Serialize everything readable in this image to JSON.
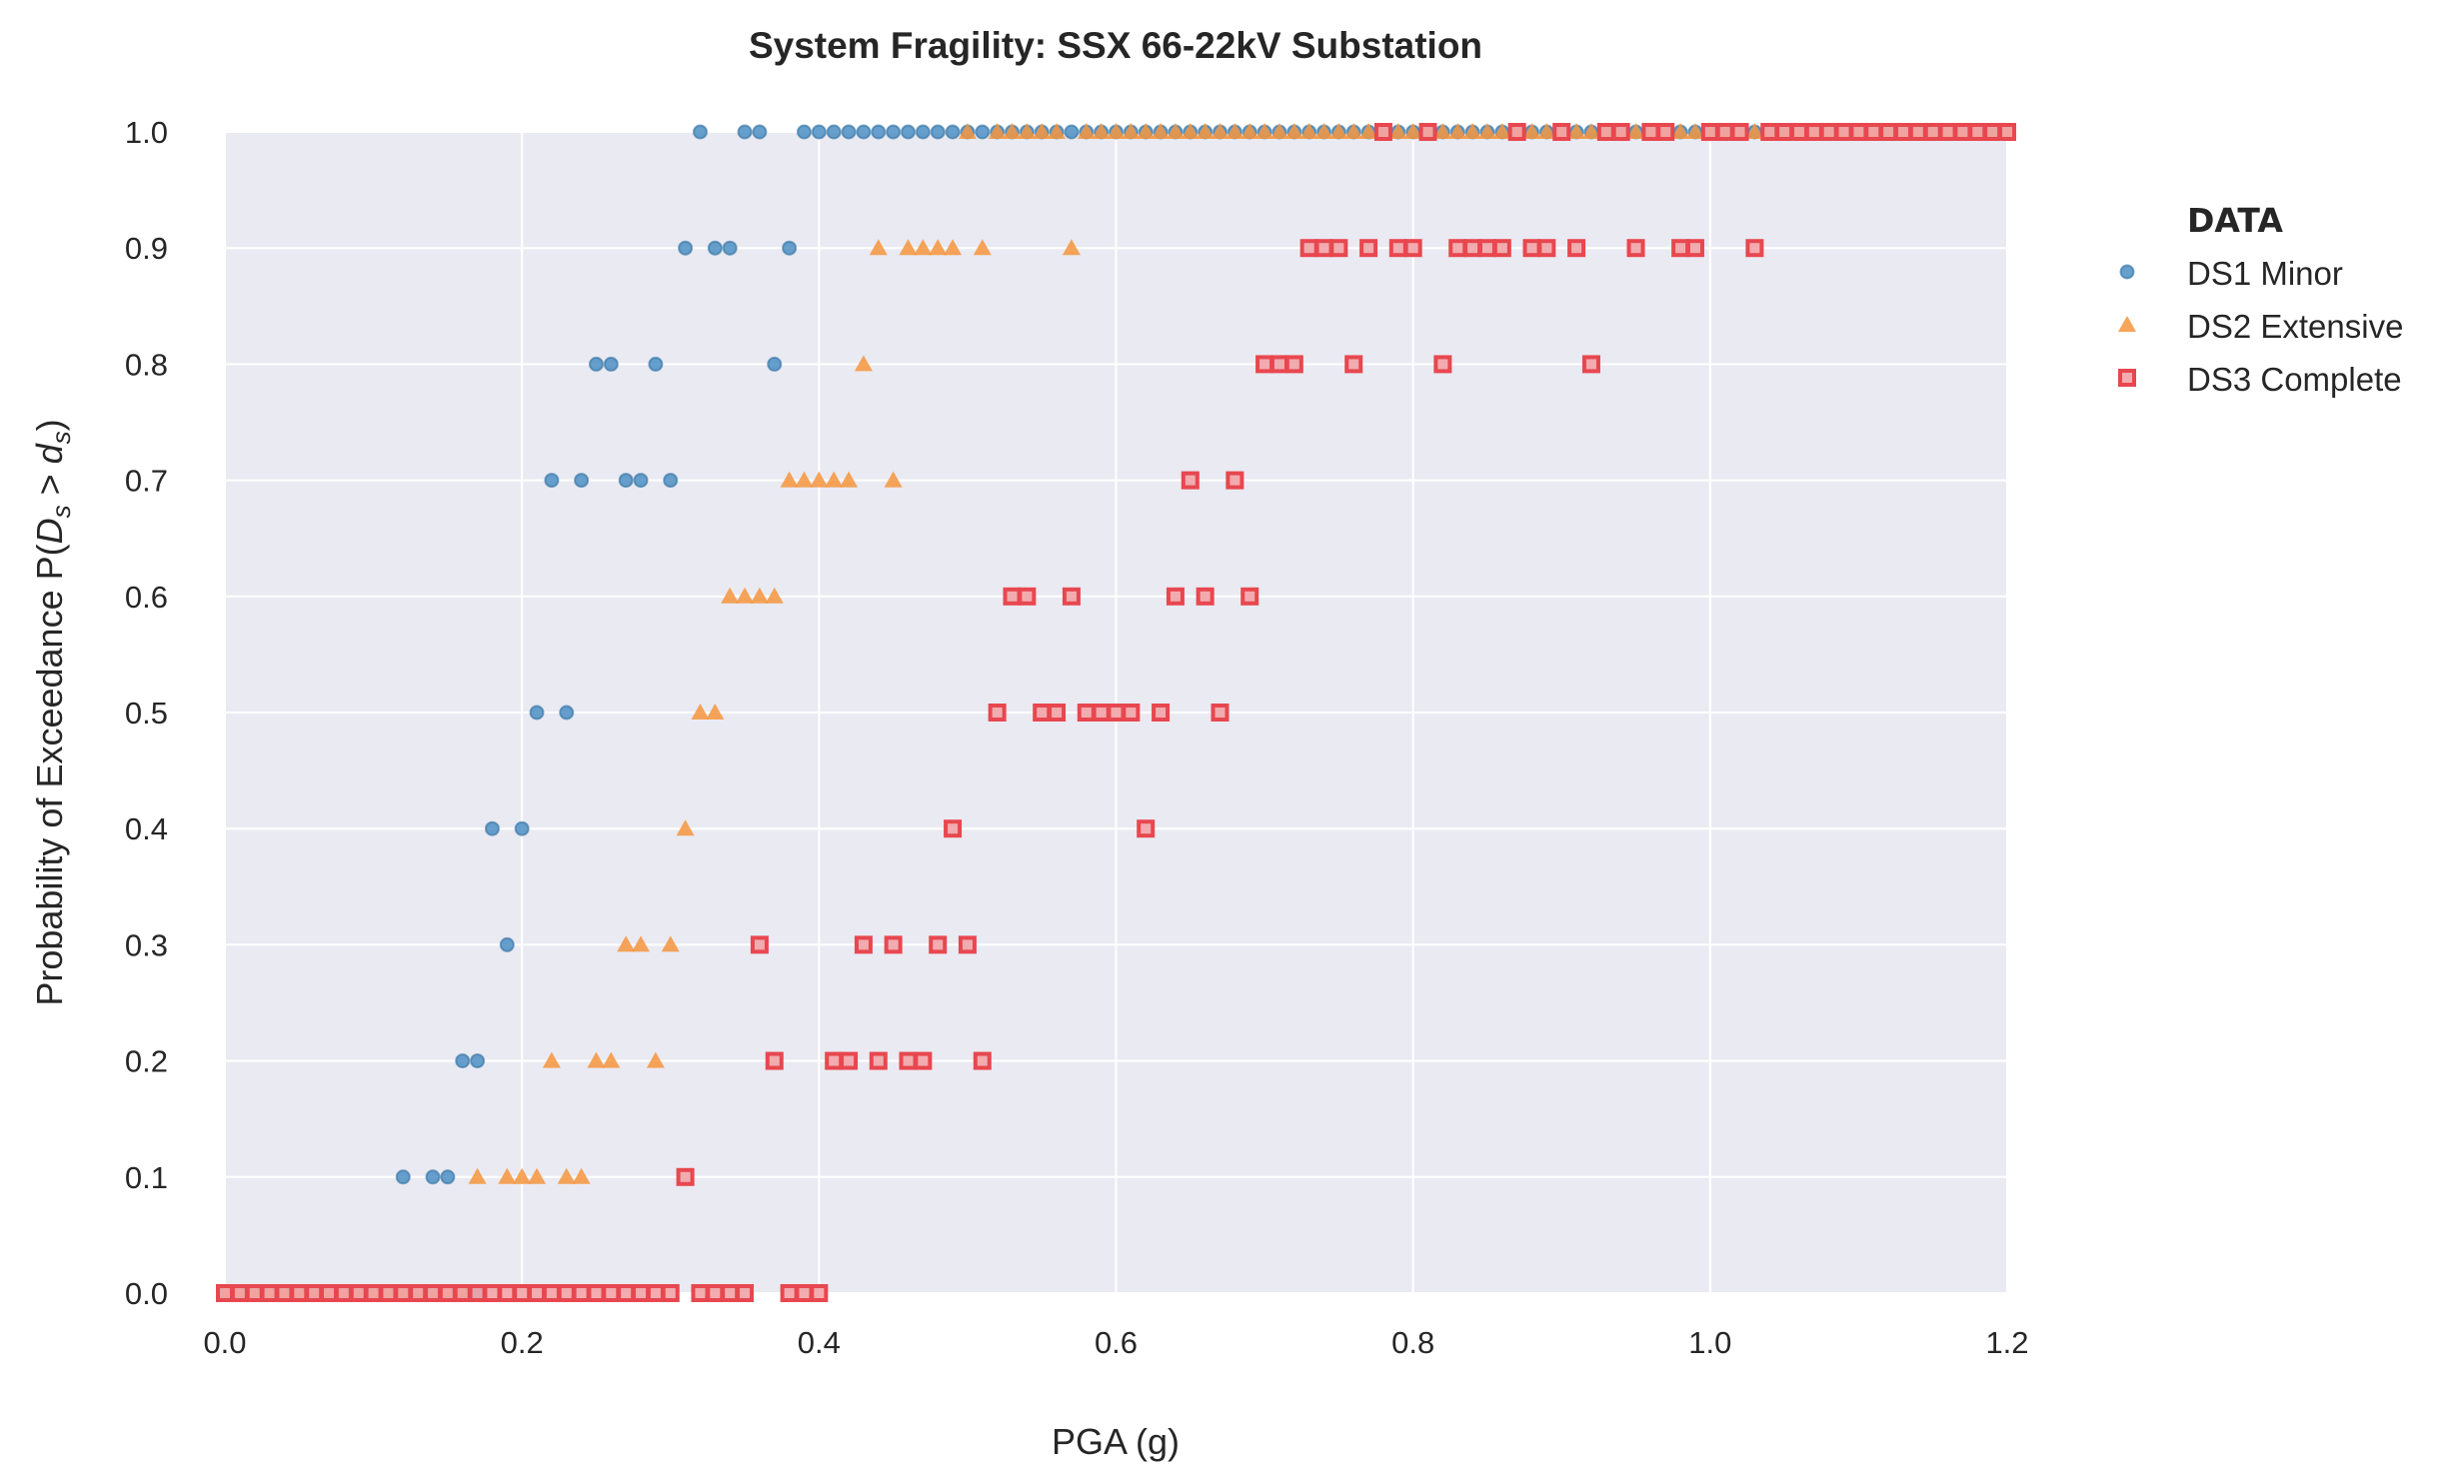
{
  "chart_data": {
    "type": "scatter",
    "title": "System Fragility: SSX 66-22kV Substation",
    "xlabel": "PGA (g)",
    "ylabel_prefix": "Probability of Exceedance  P(",
    "ylabel_D": "D",
    "ylabel_s1": "s",
    "ylabel_gt": " > ",
    "ylabel_d": "d",
    "ylabel_s2": "s",
    "ylabel_close": ")",
    "xlim": [
      0.0,
      1.2
    ],
    "ylim": [
      0.0,
      1.0
    ],
    "xticks": [
      "0.0",
      "0.2",
      "0.4",
      "0.6",
      "0.8",
      "1.0",
      "1.2"
    ],
    "yticks": [
      "0.0",
      "0.1",
      "0.2",
      "0.3",
      "0.4",
      "0.5",
      "0.6",
      "0.7",
      "0.8",
      "0.9",
      "1.0"
    ],
    "grid": true,
    "legend": {
      "title": "DATA",
      "placement": "right-outside-top"
    },
    "series": [
      {
        "name": "DS1 Minor",
        "marker": "circle",
        "color": "#4c8fc4",
        "points": [
          {
            "y": 0.0,
            "x": [
              0.0,
              0.01,
              0.02,
              0.03,
              0.04,
              0.05,
              0.06,
              0.07,
              0.08,
              0.09,
              0.1,
              0.11,
              0.12,
              0.13,
              0.14,
              0.15,
              0.16,
              0.17
            ]
          },
          {
            "y": 0.1,
            "x": [
              0.12,
              0.14,
              0.15
            ]
          },
          {
            "y": 0.2,
            "x": [
              0.16,
              0.17
            ]
          },
          {
            "y": 0.3,
            "x": [
              0.19
            ]
          },
          {
            "y": 0.4,
            "x": [
              0.18,
              0.2
            ]
          },
          {
            "y": 0.5,
            "x": [
              0.21,
              0.23
            ]
          },
          {
            "y": 0.7,
            "x": [
              0.22,
              0.24,
              0.27,
              0.28,
              0.3
            ]
          },
          {
            "y": 0.8,
            "x": [
              0.25,
              0.26,
              0.29,
              0.37
            ]
          },
          {
            "y": 0.9,
            "x": [
              0.31,
              0.33,
              0.34,
              0.38
            ]
          },
          {
            "y": 1.0,
            "x": [
              0.32,
              0.35,
              0.36,
              0.39,
              0.4,
              0.41,
              0.42,
              0.43,
              0.44,
              0.45,
              0.46,
              0.47,
              0.48,
              0.49,
              0.5,
              0.51,
              0.52,
              0.53,
              0.54,
              0.55,
              0.56,
              0.57,
              0.58,
              0.59,
              0.6,
              0.61,
              0.62,
              0.63,
              0.64,
              0.65,
              0.66,
              0.67,
              0.68,
              0.69,
              0.7,
              0.71,
              0.72,
              0.73,
              0.74,
              0.75,
              0.76,
              0.77,
              0.78,
              0.79,
              0.8,
              0.81,
              0.82,
              0.83,
              0.84,
              0.85,
              0.86,
              0.87,
              0.88,
              0.89,
              0.9,
              0.91,
              0.92,
              0.93,
              0.94,
              0.95,
              0.96,
              0.97,
              0.98,
              0.99,
              1.0,
              1.01,
              1.02,
              1.03,
              1.04,
              1.05,
              1.06,
              1.07,
              1.08,
              1.09,
              1.1,
              1.11,
              1.12,
              1.13,
              1.14,
              1.15,
              1.16,
              1.17,
              1.18,
              1.19,
              1.2
            ]
          }
        ]
      },
      {
        "name": "DS2 Extensive",
        "marker": "triangle",
        "color": "#f5953d",
        "points": [
          {
            "y": 0.0,
            "x": [
              0.0,
              0.01,
              0.02,
              0.03,
              0.04,
              0.05,
              0.06,
              0.07,
              0.08,
              0.09,
              0.1,
              0.11,
              0.12,
              0.13,
              0.14,
              0.15,
              0.16
            ]
          },
          {
            "y": 0.1,
            "x": [
              0.17,
              0.19,
              0.2,
              0.21,
              0.23,
              0.24
            ]
          },
          {
            "y": 0.2,
            "x": [
              0.22,
              0.25,
              0.26,
              0.29
            ]
          },
          {
            "y": 0.3,
            "x": [
              0.27,
              0.28,
              0.3
            ]
          },
          {
            "y": 0.4,
            "x": [
              0.31
            ]
          },
          {
            "y": 0.5,
            "x": [
              0.32,
              0.33
            ]
          },
          {
            "y": 0.6,
            "x": [
              0.34,
              0.35,
              0.36,
              0.37
            ]
          },
          {
            "y": 0.7,
            "x": [
              0.38,
              0.39,
              0.4,
              0.41,
              0.42,
              0.45
            ]
          },
          {
            "y": 0.8,
            "x": [
              0.43
            ]
          },
          {
            "y": 0.9,
            "x": [
              0.44,
              0.46,
              0.47,
              0.48,
              0.49,
              0.51,
              0.57
            ]
          },
          {
            "y": 1.0,
            "x": [
              0.5,
              0.52,
              0.53,
              0.54,
              0.55,
              0.56,
              0.58,
              0.59,
              0.6,
              0.61,
              0.62,
              0.63,
              0.64,
              0.65,
              0.66,
              0.67,
              0.68,
              0.69,
              0.7,
              0.71,
              0.72,
              0.73,
              0.74,
              0.75,
              0.76,
              0.77,
              0.78,
              0.79,
              0.8,
              0.81,
              0.82,
              0.83,
              0.84,
              0.85,
              0.86,
              0.87,
              0.88,
              0.89,
              0.9,
              0.91,
              0.92,
              0.93,
              0.94,
              0.95,
              0.96,
              0.97,
              0.98,
              0.99,
              1.0,
              1.01,
              1.02,
              1.03,
              1.04,
              1.05,
              1.06,
              1.07,
              1.08,
              1.09,
              1.1,
              1.11,
              1.12,
              1.13,
              1.14,
              1.15,
              1.16,
              1.17,
              1.18,
              1.19,
              1.2
            ]
          }
        ]
      },
      {
        "name": "DS3 Complete",
        "marker": "square",
        "color": "#e8474f",
        "points": [
          {
            "y": 0.0,
            "x": [
              0.0,
              0.01,
              0.02,
              0.03,
              0.04,
              0.05,
              0.06,
              0.07,
              0.08,
              0.09,
              0.1,
              0.11,
              0.12,
              0.13,
              0.14,
              0.15,
              0.16,
              0.17,
              0.18,
              0.19,
              0.2,
              0.21,
              0.22,
              0.23,
              0.24,
              0.25,
              0.26,
              0.27,
              0.28,
              0.29,
              0.3,
              0.32,
              0.33,
              0.34,
              0.35,
              0.38,
              0.39,
              0.4
            ]
          },
          {
            "y": 0.1,
            "x": [
              0.31
            ]
          },
          {
            "y": 0.2,
            "x": [
              0.37,
              0.41,
              0.42,
              0.44,
              0.46,
              0.47,
              0.51
            ]
          },
          {
            "y": 0.3,
            "x": [
              0.36,
              0.43,
              0.45,
              0.48,
              0.5
            ]
          },
          {
            "y": 0.4,
            "x": [
              0.49,
              0.62
            ]
          },
          {
            "y": 0.5,
            "x": [
              0.52,
              0.55,
              0.56,
              0.58,
              0.59,
              0.6,
              0.61,
              0.63,
              0.67
            ]
          },
          {
            "y": 0.6,
            "x": [
              0.53,
              0.54,
              0.57,
              0.64,
              0.66,
              0.69
            ]
          },
          {
            "y": 0.7,
            "x": [
              0.65,
              0.68
            ]
          },
          {
            "y": 0.8,
            "x": [
              0.7,
              0.71,
              0.72,
              0.76,
              0.82,
              0.92
            ]
          },
          {
            "y": 0.9,
            "x": [
              0.73,
              0.74,
              0.75,
              0.77,
              0.79,
              0.8,
              0.83,
              0.84,
              0.85,
              0.86,
              0.88,
              0.89,
              0.91,
              0.95,
              0.98,
              0.99,
              1.03
            ]
          },
          {
            "y": 1.0,
            "x": [
              0.78,
              0.81,
              0.87,
              0.9,
              0.93,
              0.94,
              0.96,
              0.97,
              1.0,
              1.01,
              1.02,
              1.04,
              1.05,
              1.06,
              1.07,
              1.08,
              1.09,
              1.1,
              1.11,
              1.12,
              1.13,
              1.14,
              1.15,
              1.16,
              1.17,
              1.18,
              1.19,
              1.2
            ]
          }
        ]
      }
    ]
  }
}
